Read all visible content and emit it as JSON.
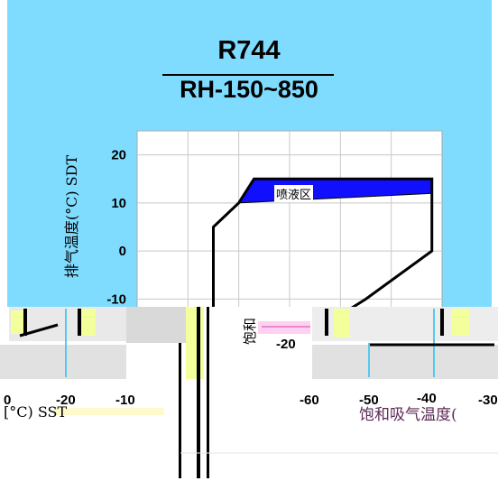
{
  "chart_data": {
    "type": "line",
    "title": "R744",
    "subtitle": "RH-150~850",
    "ylabel": "排气温度(°C) SDT",
    "xlabel_left": "[°C) SST",
    "xlabel_right": "饱和吸气温度(",
    "region_label": "喷液区",
    "y_ticks": [
      20,
      10,
      0,
      -10
    ],
    "x_ticks_left": [
      "0",
      "-20",
      "-10"
    ],
    "x_ticks_right": [
      "-60",
      "-50",
      "-40",
      "-30"
    ],
    "stray_tick": "-20",
    "stray_label": "饱和",
    "envelope": {
      "x": [
        -45,
        -45,
        -40,
        -37,
        -2,
        -2,
        -15,
        -30
      ],
      "y": [
        -20,
        5,
        10,
        15,
        15,
        0,
        -10,
        -20
      ]
    },
    "injection_zone": {
      "x": [
        -40,
        -37,
        -2,
        -2,
        -40
      ],
      "y": [
        10,
        15,
        15,
        12,
        10
      ]
    },
    "colors": {
      "background": "#80dcff",
      "plot": "#ffffff",
      "zone": "#1010ff"
    }
  }
}
